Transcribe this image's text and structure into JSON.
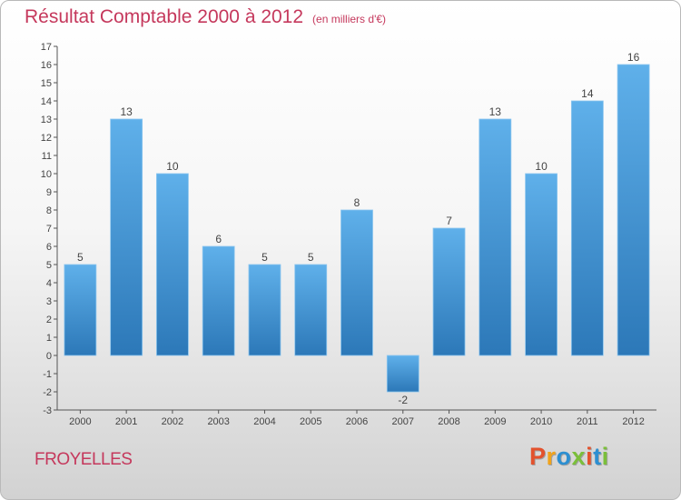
{
  "header": {
    "title": "Résultat Comptable 2000 à 2012",
    "unit": "(en milliers d'€)"
  },
  "footer": {
    "city": "FROYELLES",
    "logo_text": "Proxiti",
    "logo_colors": [
      "#e3522d",
      "#f1a31b",
      "#2d8fd1",
      "#7bbf3a",
      "#e3522d",
      "#2d8fd1",
      "#7bbf3a"
    ]
  },
  "colors": {
    "bar_top": "#5fb0ea",
    "bar_bottom": "#2c78b8",
    "title": "#c5385c",
    "axis": "#555555"
  },
  "chart_data": {
    "type": "bar",
    "title": "Résultat Comptable 2000 à 2012",
    "subtitle": "(en milliers d'€)",
    "xlabel": "",
    "ylabel": "",
    "categories": [
      "2000",
      "2001",
      "2002",
      "2003",
      "2004",
      "2005",
      "2006",
      "2007",
      "2008",
      "2009",
      "2010",
      "2011",
      "2012"
    ],
    "values": [
      5,
      13,
      10,
      6,
      5,
      5,
      8,
      -2,
      7,
      13,
      10,
      14,
      16
    ],
    "data_labels": [
      "5",
      "13",
      "10",
      "6",
      "5",
      "5",
      "8",
      "-2",
      "7",
      "13",
      "10",
      "14",
      "16"
    ],
    "ylim": [
      -3,
      17
    ],
    "yticks": [
      -3,
      -2,
      -1,
      0,
      1,
      2,
      3,
      4,
      5,
      6,
      7,
      8,
      9,
      10,
      11,
      12,
      13,
      14,
      15,
      16,
      17
    ],
    "grid": false,
    "legend": "none"
  }
}
